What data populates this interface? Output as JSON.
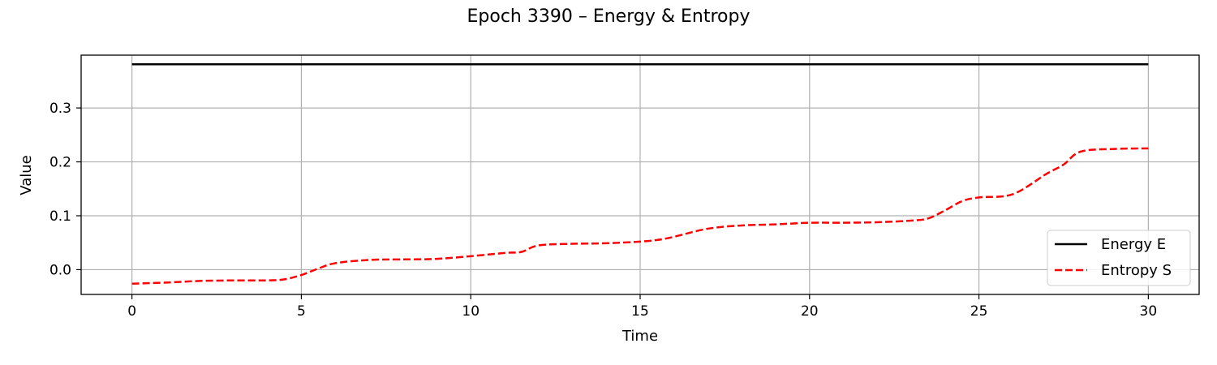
{
  "chart_data": {
    "type": "line",
    "title": "Epoch 3390 – Energy & Entropy",
    "xlabel": "Time",
    "ylabel": "Value",
    "xlim": [
      -1.5,
      31.5
    ],
    "ylim": [
      -0.046,
      0.398
    ],
    "xticks": [
      0,
      5,
      10,
      15,
      20,
      25,
      30
    ],
    "yticks": [
      0.0,
      0.1,
      0.2,
      0.3
    ],
    "ytick_labels": [
      "0.0",
      "0.1",
      "0.2",
      "0.3"
    ],
    "grid": true,
    "legend_position": "lower-right",
    "series": [
      {
        "name": "Energy E",
        "color": "#000000",
        "style": "solid",
        "x": [
          0,
          5,
          10,
          15,
          20,
          25,
          30
        ],
        "y": [
          0.381,
          0.381,
          0.381,
          0.381,
          0.381,
          0.381,
          0.381
        ]
      },
      {
        "name": "Entropy S",
        "color": "#ff0000",
        "style": "dashed",
        "x": [
          0,
          1,
          2,
          3,
          4,
          4.5,
          5,
          5.5,
          6,
          7,
          8,
          9,
          10,
          11,
          11.5,
          12,
          13,
          14,
          15,
          15.5,
          16,
          17,
          18,
          19,
          20,
          21,
          22,
          23,
          23.5,
          24,
          24.5,
          25,
          26,
          27,
          27.5,
          28,
          29,
          30
        ],
        "y": [
          -0.026,
          -0.024,
          -0.021,
          -0.02,
          -0.02,
          -0.018,
          -0.01,
          0.002,
          0.012,
          0.018,
          0.019,
          0.02,
          0.025,
          0.031,
          0.033,
          0.045,
          0.048,
          0.049,
          0.052,
          0.055,
          0.061,
          0.076,
          0.082,
          0.084,
          0.087,
          0.087,
          0.088,
          0.091,
          0.095,
          0.11,
          0.127,
          0.134,
          0.14,
          0.178,
          0.195,
          0.219,
          0.224,
          0.225
        ]
      }
    ]
  }
}
